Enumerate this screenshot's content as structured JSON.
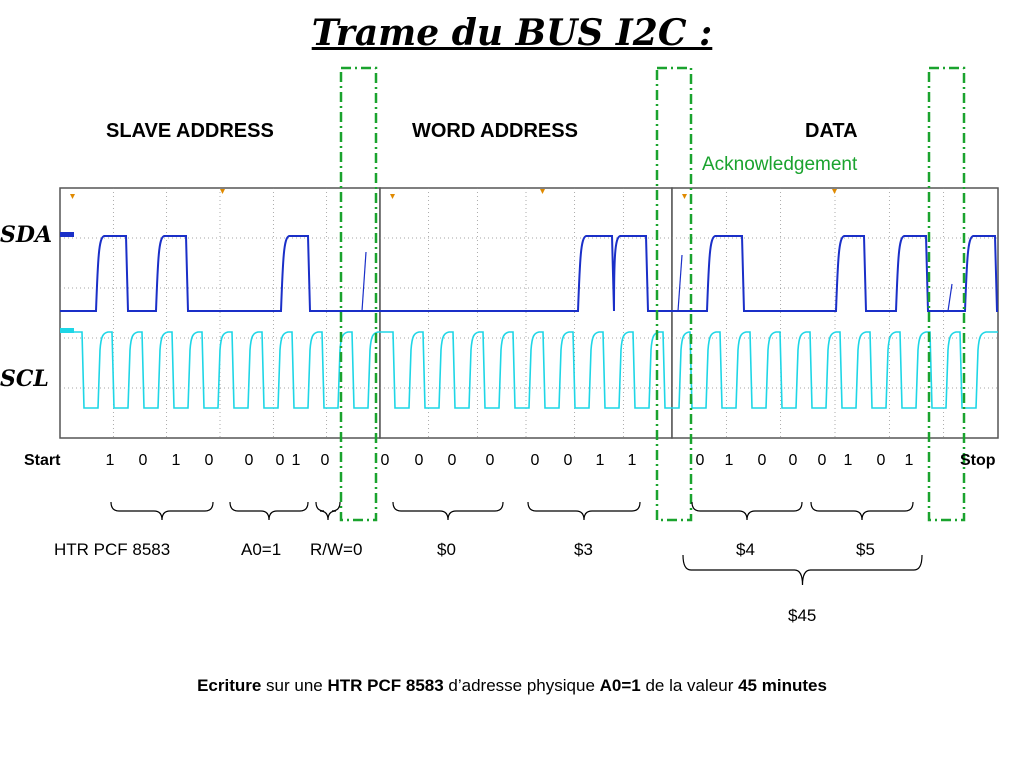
{
  "title": "Trame du BUS I2C :",
  "sections": {
    "slave_address": "SLAVE  ADDRESS",
    "word_address": "WORD  ADDRESS",
    "data": "DATA",
    "acknowledgement": "Acknowledgement"
  },
  "signals": {
    "sda": "SDA",
    "scl": "SCL"
  },
  "colors": {
    "sda": "#1a2fc8",
    "scl": "#1ed6e6",
    "ack_box": "#1aa32e",
    "grid": "#888888",
    "marker": "#e08a00"
  },
  "bits": {
    "start": "Start",
    "slave": [
      "1",
      "0",
      "1",
      "0",
      "0",
      "0",
      "1",
      "0"
    ],
    "word": [
      "0",
      "0",
      "0",
      "0",
      "0",
      "0",
      "1",
      "1"
    ],
    "data": [
      "0",
      "1",
      "0",
      "0",
      "0",
      "1",
      "0",
      "1"
    ],
    "stop": "Stop"
  },
  "groups": {
    "device": "HTR PCF 8583",
    "a0": "A0=1",
    "rw": "R/W=0",
    "w_high": "$0",
    "w_low": "$3",
    "d_high": "$4",
    "d_low": "$5",
    "data_value": "$45"
  },
  "caption": {
    "p1": "Ecriture",
    "p2": " sur une ",
    "p3": "HTR PCF 8583",
    "p4": " d’adresse physique  ",
    "p5": "A0=1",
    "p6": " de la valeur ",
    "p7": "45 minutes"
  }
}
